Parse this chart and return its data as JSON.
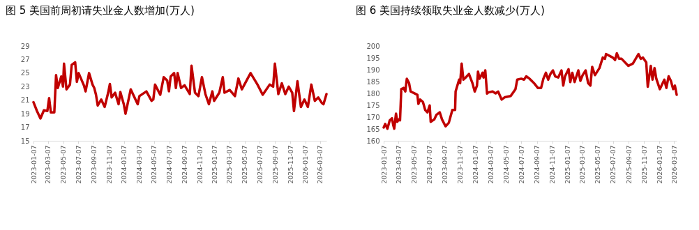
{
  "chart_data": [
    {
      "type": "line",
      "title": "图 5 美国前周初请失业金人数增加(万人)",
      "x": [
        "2023-01-07",
        "2023-01-21",
        "2023-02-04",
        "2023-02-18",
        "2023-03-04",
        "2023-03-11",
        "2023-03-18",
        "2023-04-01",
        "2023-04-08",
        "2023-04-15",
        "2023-04-29",
        "2023-05-06",
        "2023-05-10",
        "2023-05-20",
        "2023-06-03",
        "2023-06-10",
        "2023-06-24",
        "2023-07-01",
        "2023-07-08",
        "2023-07-29",
        "2023-08-05",
        "2023-08-19",
        "2023-09-02",
        "2023-09-09",
        "2023-09-16",
        "2023-09-23",
        "2023-10-07",
        "2023-10-21",
        "2023-11-04",
        "2023-11-11",
        "2023-11-18",
        "2023-12-02",
        "2023-12-16",
        "2023-12-23",
        "2024-01-06",
        "2024-01-13",
        "2024-02-03",
        "2024-03-02",
        "2024-03-09",
        "2024-04-06",
        "2024-04-27",
        "2024-05-04",
        "2024-05-11",
        "2024-06-01",
        "2024-06-15",
        "2024-06-29",
        "2024-07-06",
        "2024-07-13",
        "2024-07-27",
        "2024-08-03",
        "2024-08-10",
        "2024-08-24",
        "2024-09-07",
        "2024-09-28",
        "2024-10-05",
        "2024-10-19",
        "2024-11-02",
        "2024-11-16",
        "2024-11-30",
        "2024-12-14",
        "2024-12-28",
        "2025-01-04",
        "2025-01-25",
        "2025-02-08",
        "2025-02-15",
        "2025-03-08",
        "2025-03-29",
        "2025-04-12",
        "2025-04-26",
        "2025-05-31",
        "2025-06-28",
        "2025-07-19",
        "2025-08-16",
        "2025-08-30",
        "2025-09-06",
        "2025-09-20",
        "2025-10-04",
        "2025-10-18",
        "2025-11-01",
        "2025-11-15",
        "2025-11-22",
        "2025-12-06",
        "2025-12-20",
        "2026-01-03",
        "2026-01-17",
        "2026-01-31",
        "2026-02-14",
        "2026-02-28",
        "2026-03-14",
        "2026-03-21",
        "2026-04-02"
      ],
      "series": [
        {
          "color": "#c00000",
          "values": [
            20.7,
            19.4,
            18.3,
            19.5,
            19.4,
            21.3,
            19.2,
            19.2,
            24.7,
            22.8,
            24.5,
            23.0,
            26.4,
            22.6,
            23.3,
            26.2,
            26.6,
            23.7,
            25.0,
            23.2,
            22.3,
            25.0,
            23.3,
            22.8,
            21.8,
            20.2,
            21.1,
            20.0,
            22.1,
            23.4,
            21.4,
            22.1,
            20.4,
            22.2,
            20.4,
            19.0,
            22.6,
            20.4,
            21.6,
            22.3,
            20.9,
            21.1,
            23.3,
            21.8,
            24.4,
            23.9,
            22.3,
            24.5,
            25.0,
            22.8,
            25.0,
            22.8,
            23.2,
            21.9,
            26.1,
            22.1,
            21.6,
            24.4,
            21.9,
            20.4,
            22.3,
            20.9,
            22.1,
            24.4,
            22.1,
            22.5,
            21.6,
            24.2,
            22.6,
            25.0,
            23.3,
            21.8,
            23.3,
            23.0,
            26.4,
            21.9,
            23.5,
            21.9,
            23.0,
            22.1,
            19.4,
            23.8,
            20.0,
            21.1,
            20.0,
            23.3,
            20.9,
            21.4,
            20.6,
            20.4,
            21.9
          ]
        }
      ],
      "xlim": [
        "2023-01-07",
        "2026-04-02"
      ],
      "xticks": [
        "2023-01-07",
        "2023-03-07",
        "2023-05-07",
        "2023-07-07",
        "2023-09-07",
        "2023-11-07",
        "2024-01-07",
        "2024-03-07",
        "2024-05-07",
        "2024-07-07",
        "2024-09-07",
        "2024-11-07",
        "2025-01-07",
        "2025-03-07",
        "2025-05-07",
        "2025-07-07",
        "2025-09-07",
        "2025-11-07",
        "2026-01-07",
        "2026-03-07"
      ],
      "ylim": [
        15,
        29
      ],
      "yticks": [
        15,
        17,
        19,
        21,
        23,
        25,
        27,
        29
      ]
    },
    {
      "type": "line",
      "title": "图 6 美国持续领取失业金人数减少(万人)",
      "x": [
        "2023-01-07",
        "2023-01-13",
        "2023-01-22",
        "2023-01-31",
        "2023-02-09",
        "2023-02-14",
        "2023-02-18",
        "2023-02-25",
        "2023-03-02",
        "2023-03-08",
        "2023-03-13",
        "2023-03-18",
        "2023-03-27",
        "2023-04-03",
        "2023-04-09",
        "2023-04-18",
        "2023-04-24",
        "2023-05-12",
        "2023-05-21",
        "2023-05-25",
        "2023-06-01",
        "2023-06-12",
        "2023-06-21",
        "2023-06-30",
        "2023-07-09",
        "2023-07-13",
        "2023-07-27",
        "2023-08-05",
        "2023-08-18",
        "2023-08-27",
        "2023-09-10",
        "2023-09-23",
        "2023-10-07",
        "2023-10-18",
        "2023-10-20",
        "2023-11-03",
        "2023-11-07",
        "2023-11-13",
        "2023-11-20",
        "2023-11-29",
        "2023-12-12",
        "2023-12-26",
        "2024-01-04",
        "2024-01-13",
        "2024-01-17",
        "2024-01-23",
        "2024-02-04",
        "2024-02-08",
        "2024-02-15",
        "2024-02-22",
        "2024-02-27",
        "2024-03-15",
        "2024-03-27",
        "2024-04-06",
        "2024-04-20",
        "2024-05-03",
        "2024-05-26",
        "2024-06-14",
        "2024-06-21",
        "2024-07-07",
        "2024-07-18",
        "2024-07-27",
        "2024-08-09",
        "2024-08-27",
        "2024-09-11",
        "2024-09-24",
        "2024-10-03",
        "2024-10-13",
        "2024-10-22",
        "2024-10-31",
        "2024-11-10",
        "2024-11-19",
        "2024-12-01",
        "2024-12-14",
        "2024-12-21",
        "2024-12-28",
        "2025-01-11",
        "2025-01-18",
        "2025-01-26",
        "2025-02-04",
        "2025-02-19",
        "2025-02-27",
        "2025-03-08",
        "2025-03-20",
        "2025-03-30",
        "2025-04-08",
        "2025-04-15",
        "2025-04-26",
        "2025-05-14",
        "2025-05-27",
        "2025-06-05",
        "2025-06-09",
        "2025-07-06",
        "2025-07-15",
        "2025-07-22",
        "2025-07-31",
        "2025-08-10",
        "2025-09-06",
        "2025-09-24",
        "2025-10-16",
        "2025-10-25",
        "2025-11-03",
        "2025-11-16",
        "2025-11-22",
        "2025-12-04",
        "2025-12-11",
        "2025-12-19",
        "2025-12-26",
        "2026-01-09",
        "2026-01-27",
        "2026-02-04",
        "2026-02-13",
        "2026-02-22",
        "2026-03-03",
        "2026-03-10",
        "2026-03-17"
      ],
      "series": [
        {
          "color": "#c00000",
          "values": [
            165.6,
            167.1,
            165.1,
            168.6,
            169.5,
            166.6,
            165.1,
            171.5,
            168.0,
            169.0,
            168.6,
            181.8,
            182.3,
            180.8,
            186.2,
            184.3,
            180.8,
            179.9,
            179.4,
            175.6,
            177.4,
            176.4,
            173.0,
            172.0,
            174.9,
            168.0,
            169.0,
            171.0,
            172.0,
            169.0,
            166.1,
            167.6,
            173.0,
            173.0,
            180.8,
            185.8,
            184.3,
            192.6,
            185.8,
            186.7,
            188.2,
            184.3,
            180.8,
            183.3,
            189.2,
            186.2,
            188.7,
            186.7,
            189.7,
            179.9,
            180.4,
            180.8,
            180.0,
            180.8,
            177.4,
            178.4,
            178.9,
            181.8,
            185.8,
            186.2,
            185.8,
            187.2,
            186.2,
            184.3,
            182.3,
            182.3,
            186.2,
            188.7,
            185.8,
            188.2,
            189.7,
            187.2,
            186.7,
            189.7,
            183.3,
            187.2,
            190.2,
            184.8,
            188.7,
            184.8,
            189.7,
            185.3,
            187.7,
            189.7,
            184.3,
            183.3,
            191.2,
            187.7,
            190.7,
            195.1,
            194.6,
            196.6,
            195.1,
            194.1,
            196.9,
            194.6,
            194.6,
            191.6,
            192.6,
            196.6,
            194.6,
            195.1,
            193.1,
            182.8,
            191.6,
            185.8,
            190.7,
            186.2,
            181.8,
            185.8,
            182.3,
            187.2,
            185.3,
            181.8,
            183.3,
            179.4
          ]
        }
      ],
      "xlim": [
        "2023-01-07",
        "2026-03-17"
      ],
      "xticks": [
        "2023-01-07",
        "2023-03-07",
        "2023-05-07",
        "2023-07-07",
        "2023-09-07",
        "2023-11-07",
        "2024-01-07",
        "2024-03-07",
        "2024-05-07",
        "2024-07-07",
        "2024-09-07",
        "2024-11-07",
        "2025-01-07",
        "2025-03-07",
        "2025-05-07",
        "2025-07-07",
        "2025-09-07",
        "2025-11-07",
        "2026-01-07",
        "2026-03-07"
      ],
      "ylim": [
        160,
        200
      ],
      "yticks": [
        160,
        165,
        170,
        175,
        180,
        185,
        190,
        195,
        200
      ]
    }
  ]
}
